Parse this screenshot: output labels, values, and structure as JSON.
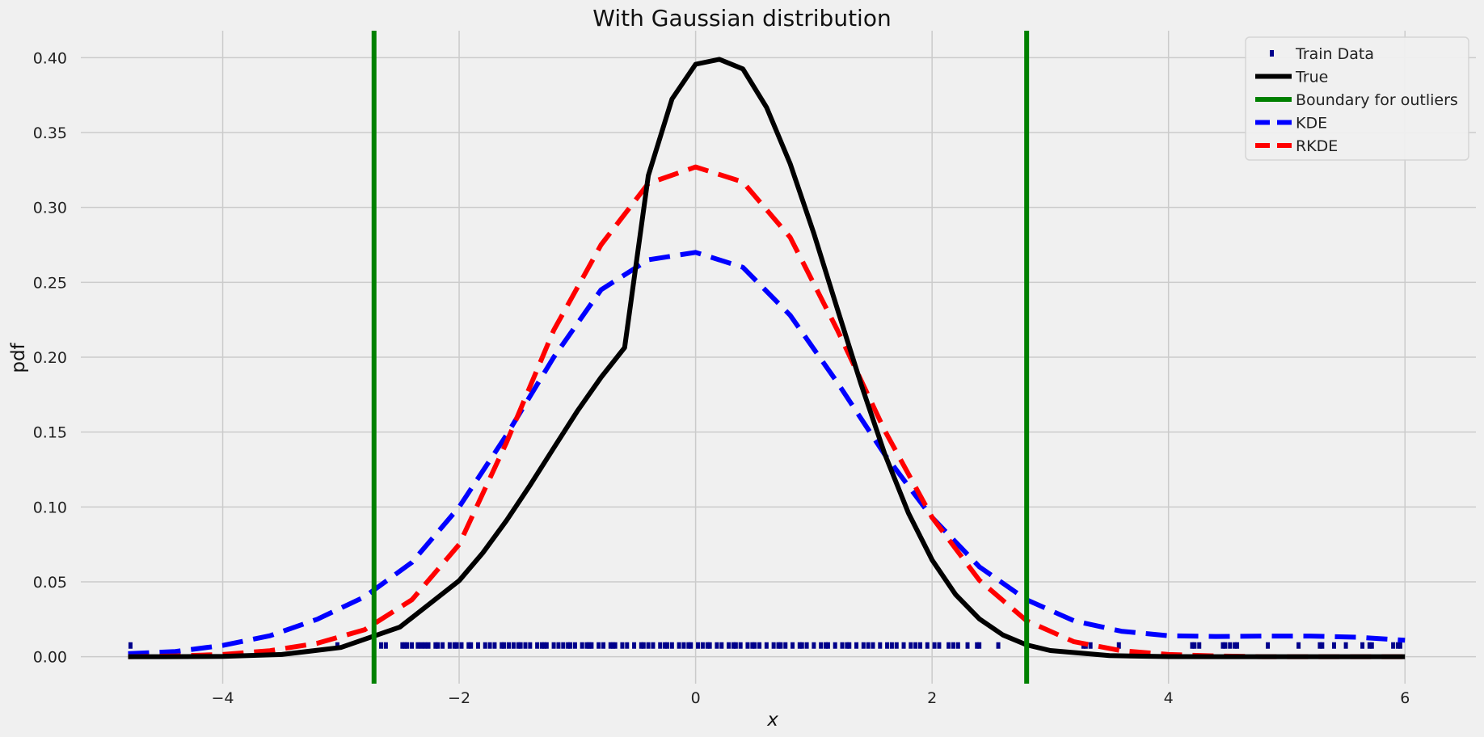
{
  "chart_data": {
    "type": "line",
    "title": "With Gaussian distribution",
    "xlabel": "x",
    "ylabel": "pdf",
    "xlim": [
      -5.2,
      6.6
    ],
    "ylim": [
      -0.018,
      0.418
    ],
    "xticks": [
      -4,
      -2,
      0,
      2,
      4,
      6
    ],
    "xtick_labels": [
      "−4",
      "−2",
      "0",
      "2",
      "4",
      "6"
    ],
    "yticks": [
      0.0,
      0.05,
      0.1,
      0.15,
      0.2,
      0.25,
      0.3,
      0.35,
      0.4
    ],
    "ytick_labels": [
      "0.00",
      "0.05",
      "0.10",
      "0.15",
      "0.20",
      "0.25",
      "0.30",
      "0.35",
      "0.40"
    ],
    "grid": true,
    "legend_position": "top-right",
    "background": "#f0f0f0",
    "series": [
      {
        "name": "Train Data",
        "style": "markers",
        "color": "#00008b",
        "y": 0.0075,
        "x": [
          -4.78,
          -3.03,
          -2.62,
          -2.48,
          -2.44,
          -2.4,
          -2.32,
          -2.26,
          -2.2,
          -2.14,
          -2.08,
          -2.04,
          -1.98,
          -1.92,
          -1.84,
          -1.78,
          -1.74,
          -1.7,
          -1.64,
          -1.58,
          -1.54,
          -1.5,
          -1.44,
          -1.4,
          -1.34,
          -1.3,
          -1.26,
          -1.2,
          -1.16,
          -1.12,
          -1.06,
          -1.02,
          -0.96,
          -0.92,
          -0.88,
          -0.82,
          -0.78,
          -0.72,
          -0.68,
          -0.62,
          -0.58,
          -0.52,
          -0.46,
          -0.4,
          -0.36,
          -0.3,
          -0.26,
          -0.2,
          -0.14,
          -0.1,
          -0.04,
          0.02,
          0.06,
          0.12,
          0.18,
          0.22,
          0.28,
          0.34,
          0.38,
          0.44,
          0.5,
          0.54,
          0.6,
          0.66,
          0.7,
          0.76,
          0.82,
          0.88,
          0.94,
          1.0,
          1.06,
          1.12,
          1.18,
          1.24,
          1.3,
          1.36,
          1.42,
          1.5,
          1.56,
          1.62,
          1.7,
          1.76,
          1.82,
          1.9,
          1.96,
          2.06,
          2.14,
          2.22,
          2.38,
          2.56,
          3.28,
          3.34,
          3.58,
          4.2,
          4.26,
          4.46,
          4.52,
          4.58,
          4.84,
          5.1,
          5.28,
          5.4,
          5.5,
          5.64,
          5.72,
          5.9,
          5.96
        ],
        "mirror_ticks_x": [
          -2.66,
          -2.46,
          -2.35,
          -2.29,
          -2.18,
          -2.02,
          -1.9,
          -1.62,
          -1.48,
          -1.28,
          -1.08,
          -0.9,
          -0.7,
          -0.44,
          -0.24,
          -0.06,
          0.1,
          0.32,
          0.48,
          0.72,
          0.9,
          1.1,
          1.28,
          1.46,
          1.66,
          1.86,
          2.02,
          2.18,
          2.3,
          2.4,
          3.3,
          4.22,
          4.48,
          4.56,
          5.3,
          5.7,
          5.94
        ]
      },
      {
        "name": "True",
        "style": "solid",
        "color": "#000000",
        "x": [
          -4.8,
          -4.5,
          -4.0,
          -3.5,
          -3.0,
          -2.5,
          -2.0,
          -1.8,
          -1.6,
          -1.4,
          -1.2,
          -1.0,
          -0.8,
          -0.6,
          -0.4,
          -0.2,
          0.0,
          0.2,
          0.4,
          0.6,
          0.8,
          1.0,
          1.2,
          1.4,
          1.6,
          1.8,
          2.0,
          2.2,
          2.4,
          2.6,
          2.8,
          3.0,
          3.5,
          4.0,
          4.5,
          5.0,
          5.5,
          6.0
        ],
        "y": [
          0.0,
          0.0,
          0.0002,
          0.0015,
          0.0062,
          0.0198,
          0.0508,
          0.0693,
          0.0909,
          0.1145,
          0.1394,
          0.164,
          0.1865,
          0.2064,
          0.3213,
          0.3724,
          0.3956,
          0.3989,
          0.3925,
          0.3668,
          0.3292,
          0.2826,
          0.232,
          0.1818,
          0.1354,
          0.0959,
          0.0646,
          0.0414,
          0.0252,
          0.0145,
          0.0079,
          0.0041,
          0.0007,
          0.0001,
          0.0,
          0.0,
          0.0,
          0.0
        ]
      },
      {
        "name": "Boundary for outliers",
        "style": "vline",
        "color": "#008000",
        "x_values": [
          -2.72,
          2.8
        ]
      },
      {
        "name": "KDE",
        "style": "dashed",
        "color": "#0000ff",
        "x": [
          -4.8,
          -4.4,
          -4.0,
          -3.6,
          -3.2,
          -2.8,
          -2.4,
          -2.0,
          -1.6,
          -1.2,
          -0.8,
          -0.4,
          0.0,
          0.4,
          0.8,
          1.2,
          1.6,
          2.0,
          2.4,
          2.8,
          3.2,
          3.6,
          4.0,
          4.4,
          4.8,
          5.2,
          5.6,
          6.0
        ],
        "y": [
          0.002,
          0.0035,
          0.0075,
          0.014,
          0.025,
          0.04,
          0.063,
          0.1,
          0.148,
          0.2,
          0.245,
          0.265,
          0.27,
          0.26,
          0.228,
          0.183,
          0.135,
          0.093,
          0.06,
          0.038,
          0.024,
          0.017,
          0.014,
          0.0135,
          0.0138,
          0.0138,
          0.013,
          0.011
        ]
      },
      {
        "name": "RKDE",
        "style": "dashed",
        "color": "#ff0000",
        "x": [
          -4.8,
          -4.4,
          -4.0,
          -3.6,
          -3.2,
          -2.8,
          -2.4,
          -2.0,
          -1.6,
          -1.2,
          -0.8,
          -0.4,
          0.0,
          0.4,
          0.8,
          1.2,
          1.6,
          2.0,
          2.4,
          2.8,
          3.2,
          3.6,
          4.0,
          4.4,
          4.8,
          5.2,
          5.6,
          6.0
        ],
        "y": [
          0.0,
          0.0005,
          0.0015,
          0.004,
          0.009,
          0.018,
          0.038,
          0.075,
          0.143,
          0.218,
          0.275,
          0.316,
          0.327,
          0.317,
          0.28,
          0.218,
          0.151,
          0.093,
          0.051,
          0.024,
          0.01,
          0.004,
          0.0015,
          0.0005,
          0.0,
          0.0,
          0.0,
          0.0
        ]
      }
    ]
  }
}
